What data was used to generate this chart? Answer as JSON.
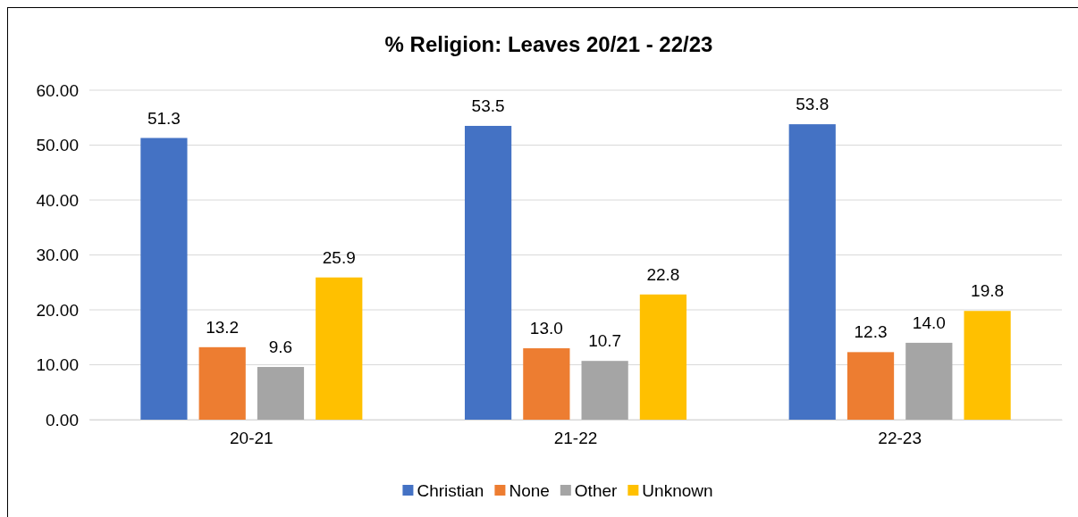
{
  "chart_data": {
    "type": "bar",
    "title": "% Religion: Leaves 20/21 - 22/23",
    "categories": [
      "20-21",
      "21-22",
      "22-23"
    ],
    "series": [
      {
        "name": "Christian",
        "color": "#4472c4",
        "values": [
          51.3,
          53.5,
          53.8
        ],
        "value_labels": [
          "51.3",
          "53.5",
          "53.8"
        ]
      },
      {
        "name": "None",
        "color": "#ed7d31",
        "values": [
          13.2,
          13.0,
          12.3
        ],
        "value_labels": [
          "13.2",
          "13.0",
          "12.3"
        ]
      },
      {
        "name": "Other",
        "color": "#a5a5a5",
        "values": [
          9.6,
          10.7,
          14.0
        ],
        "value_labels": [
          "9.6",
          "10.7",
          "14.0"
        ]
      },
      {
        "name": "Unknown",
        "color": "#ffc000",
        "values": [
          25.9,
          22.8,
          19.8
        ],
        "value_labels": [
          "25.9",
          "22.8",
          "19.8"
        ]
      }
    ],
    "ylim": [
      0,
      60
    ],
    "yticks": [
      {
        "value": 0,
        "label": "0.00"
      },
      {
        "value": 10,
        "label": "10.00"
      },
      {
        "value": 20,
        "label": "20.00"
      },
      {
        "value": 30,
        "label": "30.00"
      },
      {
        "value": 40,
        "label": "40.00"
      },
      {
        "value": 50,
        "label": "50.00"
      },
      {
        "value": 60,
        "label": "60.00"
      }
    ],
    "grid": "y",
    "legend": "bottom"
  }
}
